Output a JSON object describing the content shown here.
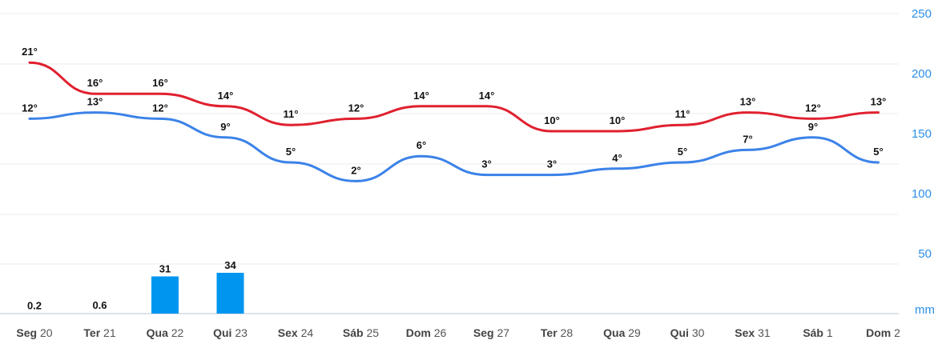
{
  "chart_data": {
    "type": "line",
    "categories": [
      {
        "day": "Seg",
        "date": "20"
      },
      {
        "day": "Ter",
        "date": "21"
      },
      {
        "day": "Qua",
        "date": "22"
      },
      {
        "day": "Qui",
        "date": "23"
      },
      {
        "day": "Sex",
        "date": "24"
      },
      {
        "day": "Sáb",
        "date": "25"
      },
      {
        "day": "Dom",
        "date": "26"
      },
      {
        "day": "Seg",
        "date": "27"
      },
      {
        "day": "Ter",
        "date": "28"
      },
      {
        "day": "Qua",
        "date": "29"
      },
      {
        "day": "Qui",
        "date": "30"
      },
      {
        "day": "Sex",
        "date": "31"
      },
      {
        "day": "Sáb",
        "date": "1"
      },
      {
        "day": "Dom",
        "date": "2"
      }
    ],
    "series": [
      {
        "key": "max",
        "color": "#e0202f",
        "values": [
          21,
          16,
          16,
          14,
          11,
          12,
          14,
          14,
          10,
          10,
          11,
          13,
          12,
          13
        ]
      },
      {
        "key": "min",
        "color": "#3b82e8",
        "values": [
          12,
          13,
          12,
          9,
          5,
          2,
          6,
          3,
          3,
          4,
          5,
          7,
          9,
          5
        ]
      }
    ],
    "precipitation": {
      "color": "#0096f0",
      "values": [
        0.2,
        0.6,
        31,
        34,
        null,
        null,
        null,
        null,
        null,
        null,
        null,
        null,
        null,
        null
      ],
      "labels": [
        "0.2",
        "0.6",
        "31",
        "34",
        "",
        "",
        "",
        "",
        "",
        "",
        "",
        "",
        "",
        ""
      ]
    },
    "temp_unit": "°",
    "right_axis": {
      "ticks": [
        "250",
        "200",
        "150",
        "100",
        "50"
      ],
      "unit_label": "mm",
      "color": "#2a8fe8"
    },
    "grid": true
  }
}
